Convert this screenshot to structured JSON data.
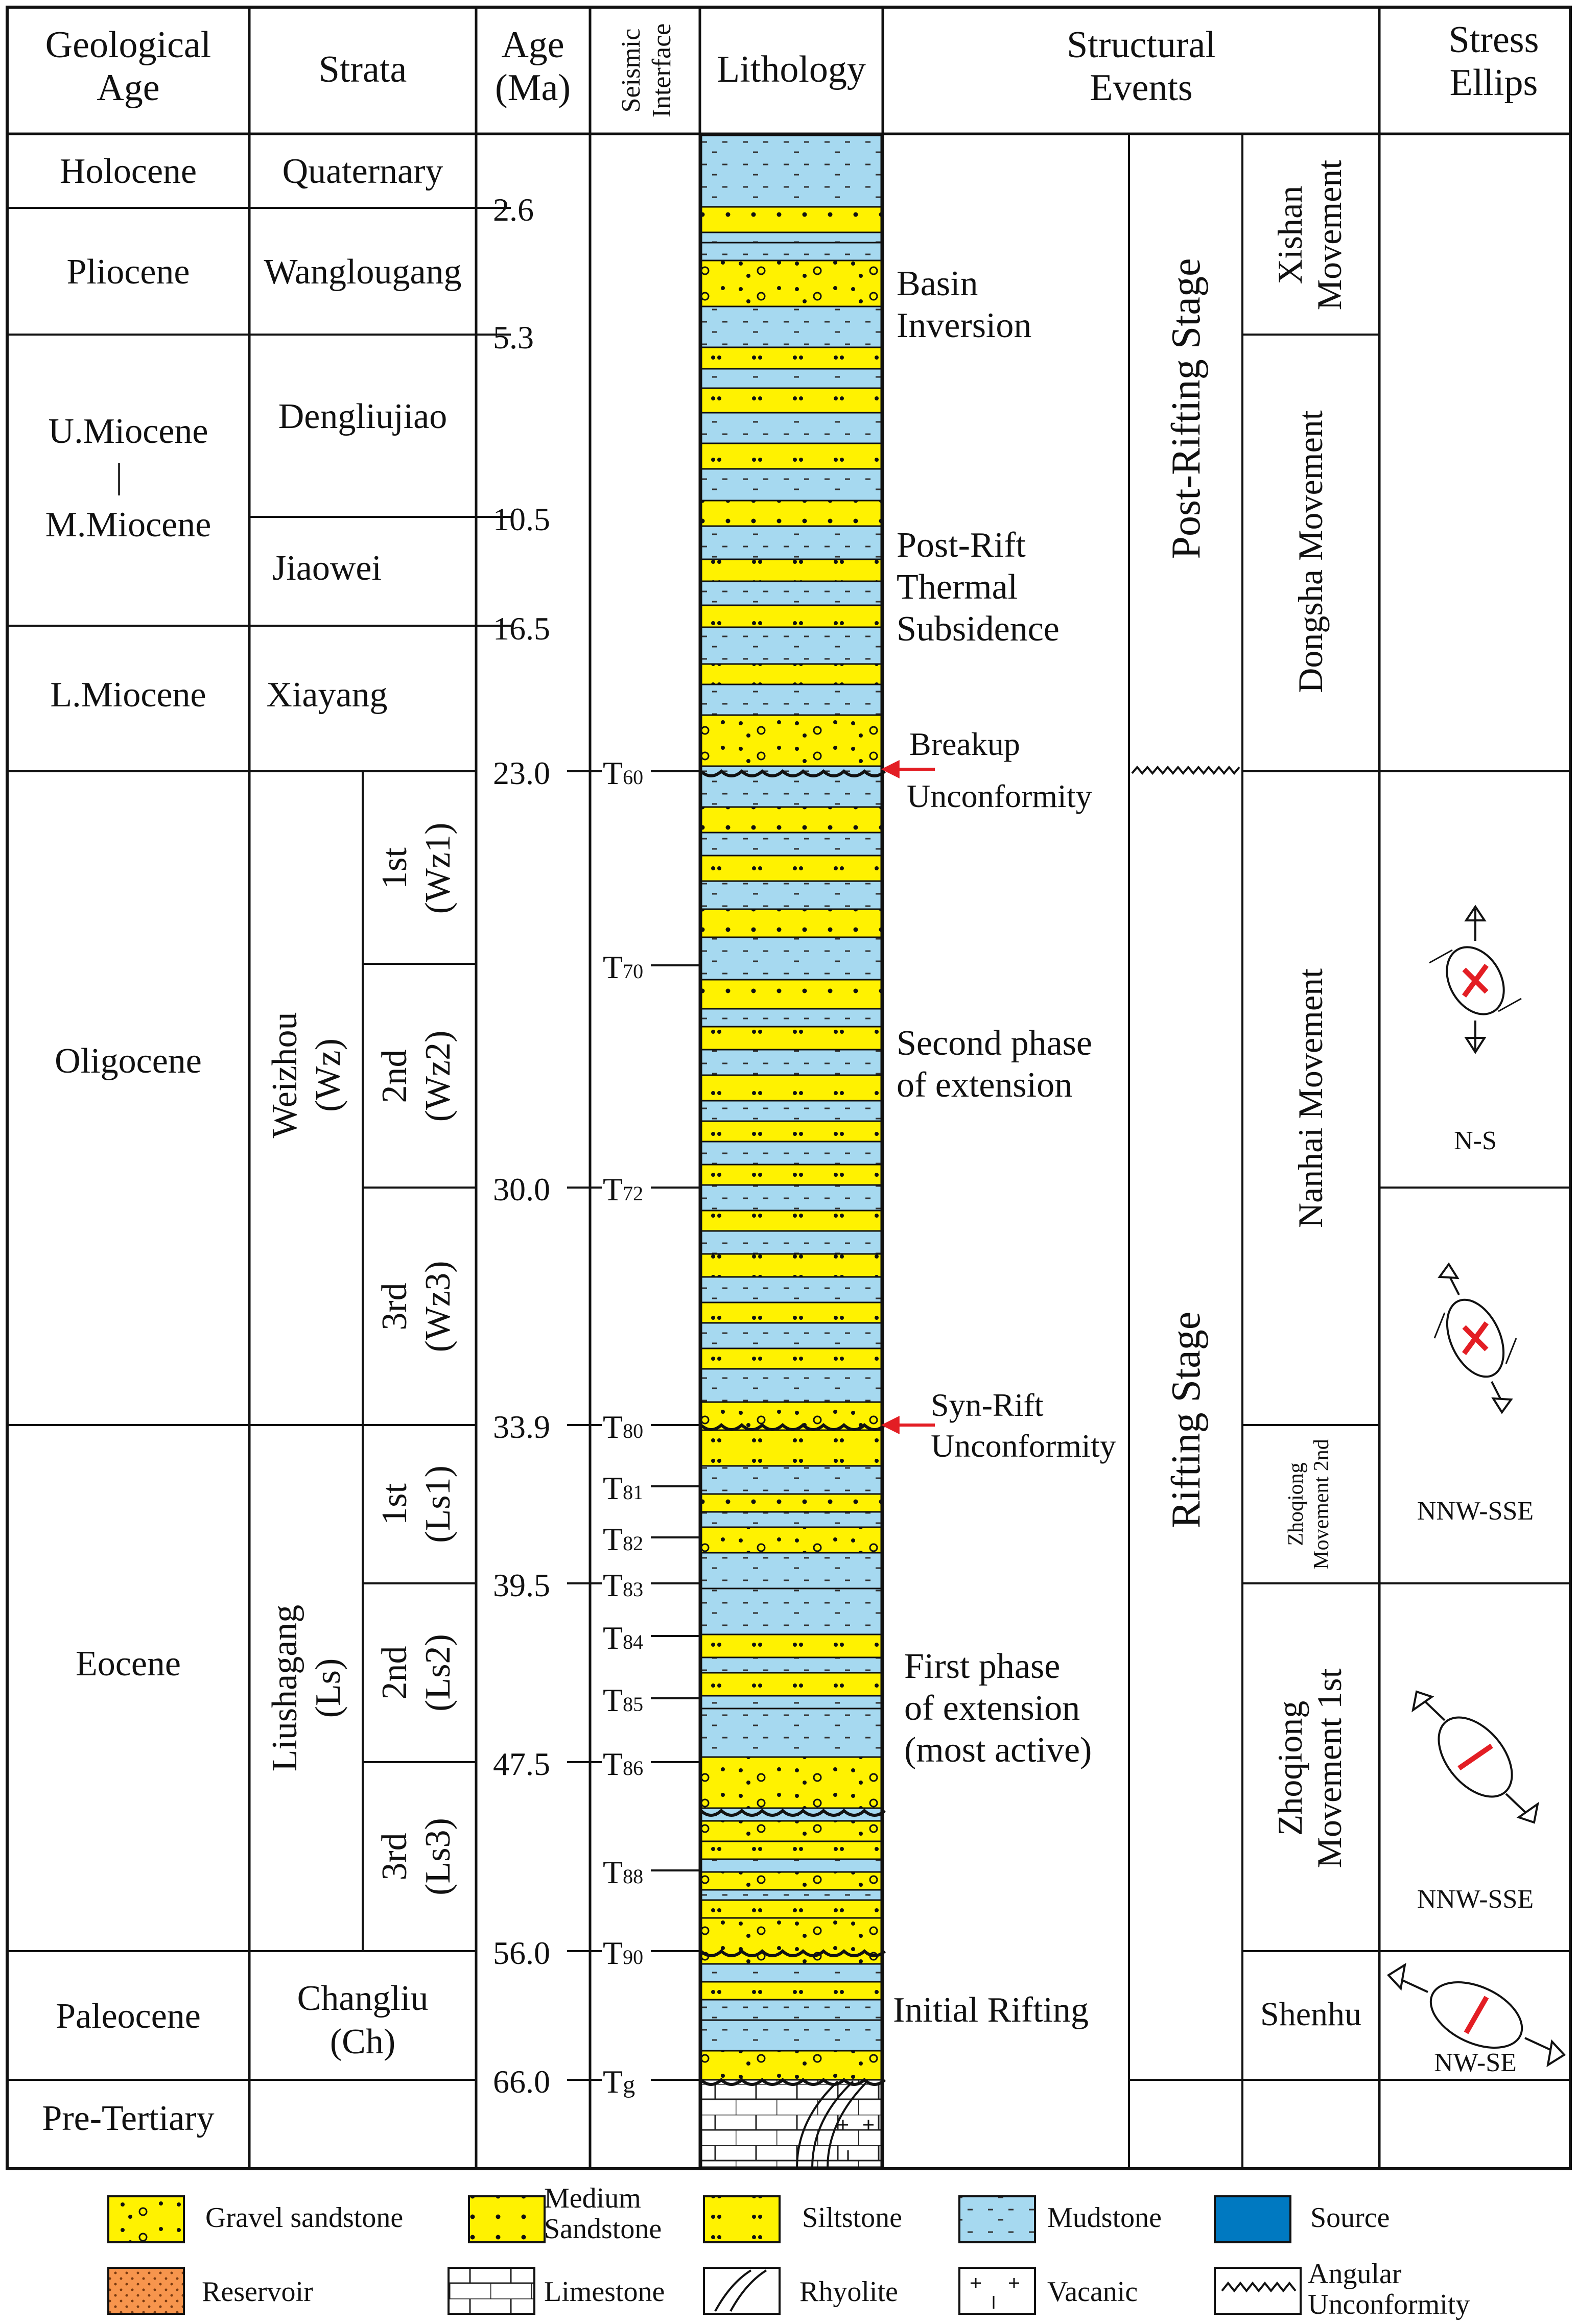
{
  "headers": {
    "geological_age": [
      "Geological",
      "Age"
    ],
    "strata": "Strata",
    "age_ma": [
      "Age",
      "(Ma)"
    ],
    "seismic_interface": [
      "Seismic",
      "Interface"
    ],
    "lithology": "Lithology",
    "structural_events": [
      "Structural",
      "Events"
    ],
    "stress_ellipse": [
      "Stress",
      "Ellips"
    ]
  },
  "geological_ages": {
    "holocene": "Holocene",
    "pliocene": "Pliocene",
    "u_miocene": "U.Miocene",
    "sep": "|",
    "m_miocene": "M.Miocene",
    "l_miocene": "L.Miocene",
    "oligocene": "Oligocene",
    "eocene": "Eocene",
    "paleocene": "Paleocene",
    "pre_tertiary": "Pre-Tertiary"
  },
  "strata": {
    "quaternary": "Quaternary",
    "wanglougang": "Wanglougang",
    "dengliujiao": "Dengliujiao",
    "jiaowei": "Jiaowei",
    "xiayang": "Xiayang",
    "weizhou": [
      "Weizhou",
      "(Wz)"
    ],
    "wz1": [
      "1st",
      "(Wz1)"
    ],
    "wz2": [
      "2nd",
      "(Wz2)"
    ],
    "wz3": [
      "3rd",
      "(Wz3)"
    ],
    "liushagang": [
      "Liushagang",
      "(Ls)"
    ],
    "ls1": [
      "1st",
      "(Ls1)"
    ],
    "ls2": [
      "2nd",
      "(Ls2)"
    ],
    "ls3": [
      "3rd",
      "(Ls3)"
    ],
    "changliu": [
      "Changliu",
      "(Ch)"
    ]
  },
  "ages": {
    "a2_6": "2.6",
    "a5_3": "5.3",
    "a10_5": "10.5",
    "a16_5": "16.5",
    "a23_0": "23.0",
    "a30_0": "30.0",
    "a33_9": "33.9",
    "a39_5": "39.5",
    "a47_5": "47.5",
    "a56_0": "56.0",
    "a66_0": "66.0"
  },
  "seismic": {
    "T60": {
      "base": "T",
      "sub": "60"
    },
    "T70": {
      "base": "T",
      "sub": "70"
    },
    "T72": {
      "base": "T",
      "sub": "72"
    },
    "T80": {
      "base": "T",
      "sub": "80"
    },
    "T81": {
      "base": "T",
      "sub": "81"
    },
    "T82": {
      "base": "T",
      "sub": "82"
    },
    "T83": {
      "base": "T",
      "sub": "83"
    },
    "T84": {
      "base": "T",
      "sub": "84"
    },
    "T85": {
      "base": "T",
      "sub": "85"
    },
    "T86": {
      "base": "T",
      "sub": "86"
    },
    "T88": {
      "base": "T",
      "sub": "88"
    },
    "T90": {
      "base": "T",
      "sub": "90"
    },
    "Tg": {
      "base": "T",
      "sub": "g"
    }
  },
  "events": {
    "basin_inversion": [
      "Basin",
      "Inversion"
    ],
    "post_rift": [
      "Post-Rift",
      "Thermal",
      "Subsidence"
    ],
    "breakup": [
      "Breakup",
      "Unconformity"
    ],
    "second_phase": [
      "Second phase",
      "of extension"
    ],
    "synrift": [
      "Syn-Rift",
      "Unconformity"
    ],
    "first_phase": [
      "First phase",
      "of extension",
      "(most active)"
    ],
    "initial_rifting": "Initial Rifting"
  },
  "stages": {
    "post_rifting": "Post-Rifting Stage",
    "rifting": "Rifting Stage"
  },
  "movements": {
    "xishan": [
      "Xishan",
      "Movement"
    ],
    "dongsha": "Dongsha Movement",
    "nanhai": "Nanhai Movement",
    "zhoqiong2": [
      "Zhoqiong",
      "Movement 2nd"
    ],
    "zhoqiong1": [
      "Zhoqiong",
      "Movement 1st"
    ],
    "shenhu": "Shenhu"
  },
  "stress": {
    "ns": "N-S",
    "nnw1": "NNW-SSE",
    "nnw2": "NNW-SSE",
    "nwse": "NW-SE"
  },
  "legend": {
    "gravel": "Gravel sandstone",
    "medium": [
      "Medium",
      "Sandstone"
    ],
    "siltstone": "Siltstone",
    "mudstone": "Mudstone",
    "source": "Source",
    "reservoir": "Reservoir",
    "limestone": "Limestone",
    "rhyolite": "Rhyolite",
    "volcanic": "Vacanic",
    "angular": [
      "Angular",
      "Unconformity"
    ]
  },
  "colors": {
    "mudstone": "#a6d9f0",
    "sandstone": "#fff200",
    "source": "#0079c1",
    "reservoir": "#f7954d",
    "red": "#e31e24"
  }
}
